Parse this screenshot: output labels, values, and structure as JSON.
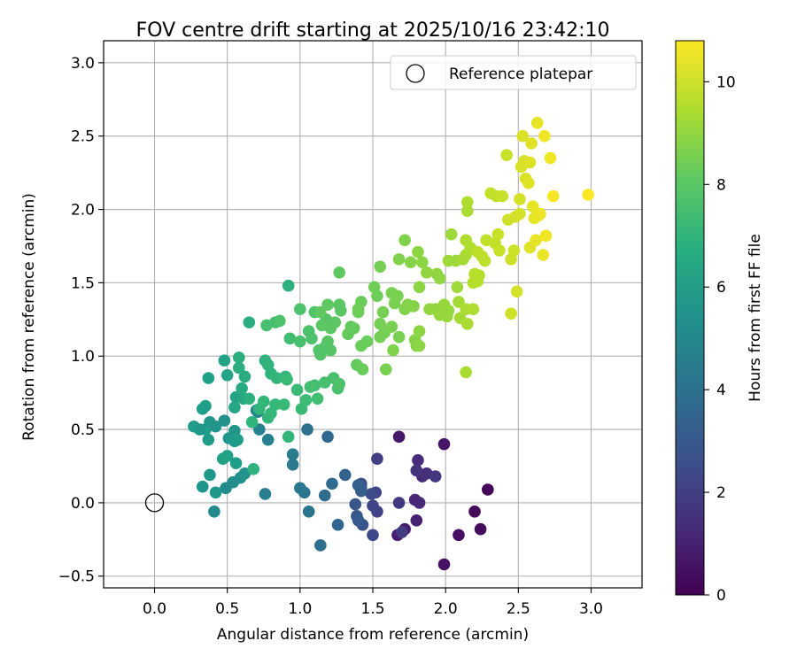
{
  "chart_data": {
    "type": "scatter",
    "title": "FOV centre drift starting at 2025/10/16 23:42:10",
    "xlabel": "Angular distance from reference (arcmin)",
    "ylabel": "Rotation from reference (arcmin)",
    "xlim": [
      -0.35,
      3.35
    ],
    "ylim": [
      -0.58,
      3.15
    ],
    "x_ticks": [
      0.0,
      0.5,
      1.0,
      1.5,
      2.0,
      2.5,
      3.0
    ],
    "x_tick_labels": [
      "0.0",
      "0.5",
      "1.0",
      "1.5",
      "2.0",
      "2.5",
      "3.0"
    ],
    "y_ticks": [
      -0.5,
      0.0,
      0.5,
      1.0,
      1.5,
      2.0,
      2.5,
      3.0
    ],
    "y_tick_labels": [
      "−0.5",
      "0.0",
      "0.5",
      "1.0",
      "1.5",
      "2.0",
      "2.5",
      "3.0"
    ],
    "grid": true,
    "legend": {
      "placement": "top-right",
      "entries": [
        "Reference platepar"
      ]
    },
    "reference_point": {
      "x": 0.0,
      "y": 0.0
    },
    "colorbar": {
      "label": "Hours from first FF file",
      "range": [
        0,
        10.8
      ],
      "ticks": [
        0,
        2,
        4,
        6,
        8,
        10
      ],
      "tick_labels": [
        "0",
        "2",
        "4",
        "6",
        "8",
        "10"
      ],
      "colormap": "viridis"
    },
    "points": [
      [
        2.29,
        0.09,
        0.1
      ],
      [
        2.2,
        -0.06,
        0.2
      ],
      [
        2.24,
        -0.18,
        0.3
      ],
      [
        2.09,
        -0.22,
        0.4
      ],
      [
        1.99,
        -0.42,
        0.5
      ],
      [
        1.99,
        0.4,
        0.6
      ],
      [
        1.68,
        0.45,
        0.7
      ],
      [
        1.72,
        -0.18,
        0.8
      ],
      [
        1.67,
        -0.22,
        0.9
      ],
      [
        1.8,
        -0.12,
        1.0
      ],
      [
        1.79,
        0.02,
        1.1
      ],
      [
        1.82,
        0.0,
        1.2
      ],
      [
        1.84,
        0.18,
        1.3
      ],
      [
        1.81,
        0.29,
        1.4
      ],
      [
        1.87,
        0.2,
        1.5
      ],
      [
        1.8,
        0.22,
        1.6
      ],
      [
        1.93,
        0.18,
        1.7
      ],
      [
        1.68,
        0.0,
        1.8
      ],
      [
        1.7,
        -0.2,
        1.9
      ],
      [
        1.53,
        0.3,
        2.0
      ],
      [
        1.53,
        -0.06,
        2.1
      ],
      [
        1.52,
        0.07,
        2.2
      ],
      [
        1.5,
        -0.02,
        2.3
      ],
      [
        1.5,
        -0.22,
        2.4
      ],
      [
        1.49,
        0.06,
        2.5
      ],
      [
        1.42,
        0.13,
        2.6
      ],
      [
        1.42,
        0.1,
        2.7
      ],
      [
        1.43,
        -0.15,
        2.8
      ],
      [
        1.38,
        -0.01,
        2.9
      ],
      [
        1.39,
        -0.09,
        3.0
      ],
      [
        1.4,
        -0.12,
        3.1
      ],
      [
        1.42,
        0.08,
        3.2
      ],
      [
        1.4,
        0.12,
        3.3
      ],
      [
        1.31,
        0.19,
        3.4
      ],
      [
        1.26,
        -0.15,
        3.5
      ],
      [
        1.19,
        0.45,
        3.6
      ],
      [
        1.22,
        0.13,
        3.7
      ],
      [
        1.17,
        0.05,
        3.8
      ],
      [
        1.14,
        -0.29,
        3.9
      ],
      [
        1.05,
        0.5,
        4.0
      ],
      [
        1.06,
        -0.06,
        4.1
      ],
      [
        1.03,
        0.07,
        4.2
      ],
      [
        1.0,
        0.1,
        4.3
      ],
      [
        0.95,
        0.26,
        4.4
      ],
      [
        0.95,
        0.33,
        4.5
      ],
      [
        0.76,
        0.06,
        4.6
      ],
      [
        0.78,
        0.43,
        4.7
      ],
      [
        0.72,
        0.5,
        4.8
      ],
      [
        0.71,
        0.62,
        4.9
      ],
      [
        0.7,
        0.63,
        5.0
      ],
      [
        0.41,
        -0.06,
        5.1
      ],
      [
        0.49,
        0.1,
        5.2
      ],
      [
        0.54,
        0.14,
        5.3
      ],
      [
        0.59,
        0.17,
        5.4
      ],
      [
        0.62,
        0.2,
        5.5
      ],
      [
        0.33,
        0.11,
        5.6
      ],
      [
        0.38,
        0.19,
        5.7
      ],
      [
        0.42,
        0.07,
        5.8
      ],
      [
        0.37,
        0.43,
        5.9
      ],
      [
        0.35,
        0.5,
        6.0
      ],
      [
        0.27,
        0.52,
        5.9
      ],
      [
        0.31,
        0.5,
        5.8
      ],
      [
        0.38,
        0.55,
        5.7
      ],
      [
        0.42,
        0.52,
        5.6
      ],
      [
        0.48,
        0.56,
        5.5
      ],
      [
        0.51,
        0.44,
        5.6
      ],
      [
        0.55,
        0.49,
        5.7
      ],
      [
        0.55,
        0.42,
        5.8
      ],
      [
        0.57,
        0.43,
        5.9
      ],
      [
        0.56,
        0.27,
        6.0
      ],
      [
        0.47,
        0.3,
        6.1
      ],
      [
        0.5,
        0.32,
        6.2
      ],
      [
        0.35,
        0.66,
        6.1
      ],
      [
        0.33,
        0.64,
        6.0
      ],
      [
        0.37,
        0.85,
        6.1
      ],
      [
        0.48,
        0.97,
        6.2
      ],
      [
        0.5,
        0.87,
        6.3
      ],
      [
        0.56,
        0.72,
        6.3
      ],
      [
        0.55,
        0.65,
        6.4
      ],
      [
        0.61,
        0.71,
        6.5
      ],
      [
        0.6,
        0.78,
        6.6
      ],
      [
        0.62,
        0.86,
        6.6
      ],
      [
        0.58,
        0.92,
        6.7
      ],
      [
        0.58,
        0.99,
        6.7
      ],
      [
        0.65,
        0.71,
        6.8
      ],
      [
        0.68,
        0.23,
        6.9
      ],
      [
        0.67,
        0.55,
        7.0
      ],
      [
        0.72,
        0.64,
        7.0
      ],
      [
        0.75,
        0.69,
        7.1
      ],
      [
        0.78,
        0.58,
        7.1
      ],
      [
        0.65,
        1.23,
        6.7
      ],
      [
        0.92,
        1.48,
        6.8
      ],
      [
        0.76,
        0.97,
        6.9
      ],
      [
        0.78,
        0.94,
        7.0
      ],
      [
        0.8,
        0.88,
        7.0
      ],
      [
        0.84,
        0.85,
        7.1
      ],
      [
        0.9,
        0.86,
        7.2
      ],
      [
        0.91,
        0.84,
        7.3
      ],
      [
        0.98,
        0.77,
        7.3
      ],
      [
        0.92,
        0.45,
        7.1
      ],
      [
        0.8,
        0.61,
        7.2
      ],
      [
        0.83,
        0.67,
        7.2
      ],
      [
        0.89,
        0.67,
        7.3
      ],
      [
        1.01,
        0.64,
        7.3
      ],
      [
        1.04,
        0.7,
        7.4
      ],
      [
        1.12,
        0.71,
        7.5
      ],
      [
        1.1,
        0.8,
        7.5
      ],
      [
        1.17,
        0.82,
        7.6
      ],
      [
        1.23,
        0.85,
        7.6
      ],
      [
        1.26,
        0.78,
        7.6
      ],
      [
        1.27,
        0.81,
        7.7
      ],
      [
        1.07,
        0.79,
        7.6
      ],
      [
        0.93,
        1.12,
        7.5
      ],
      [
        0.77,
        1.21,
        7.6
      ],
      [
        0.83,
        1.23,
        7.6
      ],
      [
        0.86,
        1.24,
        7.7
      ],
      [
        1.0,
        1.1,
        7.6
      ],
      [
        1.0,
        1.32,
        7.7
      ],
      [
        1.06,
        1.17,
        7.7
      ],
      [
        1.08,
        1.12,
        7.7
      ],
      [
        1.1,
        1.3,
        7.8
      ],
      [
        1.13,
        1.04,
        7.8
      ],
      [
        1.14,
        1.01,
        7.8
      ],
      [
        1.17,
        1.06,
        7.8
      ],
      [
        1.21,
        1.04,
        7.9
      ],
      [
        1.19,
        1.1,
        7.9
      ],
      [
        1.18,
        1.25,
        7.9
      ],
      [
        1.21,
        1.19,
        8.0
      ],
      [
        1.24,
        1.23,
        8.0
      ],
      [
        1.27,
        1.35,
        8.0
      ],
      [
        1.28,
        1.31,
        8.0
      ],
      [
        1.27,
        1.57,
        8.1
      ],
      [
        1.15,
        1.21,
        8.0
      ],
      [
        1.14,
        1.3,
        8.1
      ],
      [
        1.19,
        1.35,
        8.1
      ],
      [
        1.35,
        1.2,
        8.1
      ],
      [
        1.33,
        1.15,
        8.2
      ],
      [
        1.37,
        1.19,
        8.2
      ],
      [
        1.39,
        0.94,
        8.2
      ],
      [
        1.42,
        1.07,
        8.3
      ],
      [
        1.43,
        0.91,
        8.3
      ],
      [
        1.46,
        1.1,
        8.3
      ],
      [
        1.4,
        1.3,
        8.3
      ],
      [
        1.42,
        1.37,
        8.3
      ],
      [
        1.4,
        1.32,
        8.4
      ],
      [
        1.51,
        1.47,
        8.4
      ],
      [
        1.53,
        1.41,
        8.4
      ],
      [
        1.55,
        1.61,
        8.5
      ],
      [
        1.57,
        1.3,
        8.5
      ],
      [
        1.55,
        1.22,
        8.5
      ],
      [
        1.55,
        1.13,
        8.5
      ],
      [
        1.58,
        1.16,
        8.5
      ],
      [
        1.59,
        0.91,
        8.6
      ],
      [
        1.63,
        1.2,
        8.6
      ],
      [
        1.65,
        1.36,
        8.6
      ],
      [
        1.63,
        1.43,
        8.6
      ],
      [
        1.67,
        1.41,
        8.6
      ],
      [
        1.68,
        1.13,
        8.6
      ],
      [
        1.64,
        1.04,
        8.7
      ],
      [
        1.68,
        1.66,
        8.7
      ],
      [
        1.72,
        1.79,
        8.7
      ],
      [
        1.72,
        1.32,
        8.7
      ],
      [
        1.74,
        1.35,
        8.8
      ],
      [
        1.76,
        1.64,
        8.8
      ],
      [
        1.78,
        1.34,
        8.8
      ],
      [
        1.79,
        1.11,
        8.8
      ],
      [
        1.8,
        1.07,
        8.8
      ],
      [
        1.82,
        1.07,
        8.9
      ],
      [
        1.82,
        1.17,
        8.9
      ],
      [
        1.82,
        1.47,
        8.9
      ],
      [
        1.81,
        1.71,
        8.9
      ],
      [
        1.84,
        1.64,
        8.9
      ],
      [
        1.87,
        1.57,
        9.0
      ],
      [
        1.89,
        1.32,
        9.0
      ],
      [
        1.93,
        1.32,
        9.0
      ],
      [
        1.94,
        1.56,
        9.0
      ],
      [
        1.96,
        1.53,
        9.0
      ],
      [
        1.96,
        1.28,
        9.1
      ],
      [
        1.99,
        1.35,
        9.1
      ],
      [
        2.01,
        1.27,
        9.1
      ],
      [
        2.02,
        1.31,
        9.1
      ],
      [
        2.02,
        1.65,
        9.2
      ],
      [
        2.04,
        1.83,
        9.2
      ],
      [
        2.07,
        1.65,
        9.2
      ],
      [
        2.08,
        1.47,
        9.2
      ],
      [
        2.09,
        1.37,
        9.3
      ],
      [
        2.1,
        1.26,
        9.3
      ],
      [
        2.12,
        1.66,
        9.3
      ],
      [
        2.14,
        1.32,
        9.4
      ],
      [
        2.15,
        1.22,
        9.4
      ],
      [
        2.14,
        1.69,
        9.4
      ],
      [
        2.15,
        1.99,
        9.4
      ],
      [
        2.15,
        2.05,
        9.5
      ],
      [
        2.14,
        1.79,
        9.5
      ],
      [
        2.17,
        1.74,
        9.5
      ],
      [
        2.19,
        1.32,
        9.5
      ],
      [
        2.19,
        1.5,
        9.6
      ],
      [
        2.2,
        1.56,
        9.6
      ],
      [
        2.22,
        1.51,
        9.6
      ],
      [
        2.23,
        1.55,
        9.6
      ],
      [
        2.14,
        0.89,
        9.4
      ],
      [
        2.22,
        1.71,
        9.7
      ],
      [
        2.25,
        1.68,
        9.7
      ],
      [
        2.27,
        1.65,
        9.7
      ],
      [
        2.28,
        1.79,
        9.8
      ],
      [
        2.31,
        2.11,
        9.8
      ],
      [
        2.35,
        2.09,
        9.8
      ],
      [
        2.34,
        1.77,
        9.8
      ],
      [
        2.36,
        1.83,
        9.9
      ],
      [
        2.37,
        1.72,
        9.9
      ],
      [
        2.39,
        2.09,
        9.9
      ],
      [
        2.42,
        2.37,
        9.9
      ],
      [
        2.43,
        1.93,
        10.0
      ],
      [
        2.45,
        1.66,
        10.0
      ],
      [
        2.45,
        1.29,
        10.0
      ],
      [
        2.47,
        1.72,
        10.0
      ],
      [
        2.48,
        1.95,
        10.1
      ],
      [
        2.49,
        1.44,
        10.1
      ],
      [
        2.51,
        2.07,
        10.1
      ],
      [
        2.51,
        1.97,
        10.1
      ],
      [
        2.52,
        2.29,
        10.2
      ],
      [
        2.53,
        2.5,
        10.2
      ],
      [
        2.54,
        2.33,
        10.2
      ],
      [
        2.55,
        2.21,
        10.2
      ],
      [
        2.57,
        2.18,
        10.3
      ],
      [
        2.58,
        2.32,
        10.3
      ],
      [
        2.58,
        1.74,
        10.3
      ],
      [
        2.59,
        2.45,
        10.3
      ],
      [
        2.6,
        2.02,
        10.4
      ],
      [
        2.61,
        1.94,
        10.4
      ],
      [
        2.62,
        1.79,
        10.4
      ],
      [
        2.63,
        2.59,
        10.4
      ],
      [
        2.64,
        1.96,
        10.5
      ],
      [
        2.65,
        1.97,
        10.5
      ],
      [
        2.67,
        1.69,
        10.5
      ],
      [
        2.68,
        2.5,
        10.6
      ],
      [
        2.69,
        1.82,
        10.6
      ],
      [
        2.72,
        2.35,
        10.6
      ],
      [
        2.74,
        2.09,
        10.7
      ],
      [
        2.98,
        2.1,
        10.8
      ]
    ]
  }
}
